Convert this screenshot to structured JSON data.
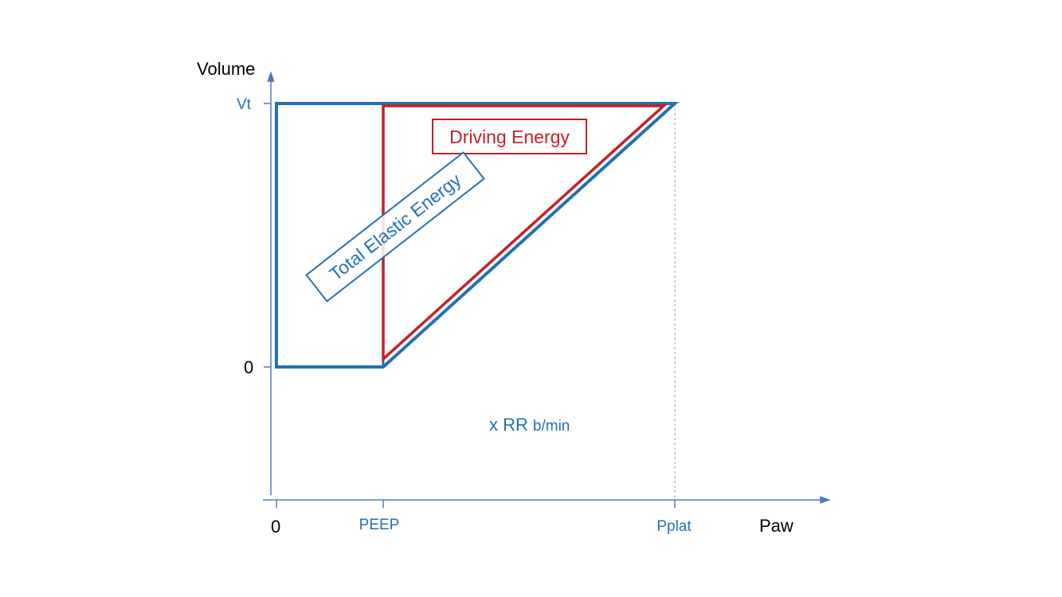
{
  "colors": {
    "axis": "#4a7dc0",
    "blue": "#2272b4",
    "red": "#c42126",
    "dashed": "#9a9a9a",
    "black": "#000000"
  },
  "axes": {
    "y_title": "Volume",
    "x_title": "Paw",
    "y_ticks": {
      "vt": "Vt",
      "zero": "0"
    },
    "x_ticks": {
      "zero": "0",
      "peep": "PEEP",
      "pplat": "Pplat"
    }
  },
  "labels": {
    "driving_energy": "Driving Energy",
    "total_elastic_energy": "Total Elastic Energy",
    "rate_prefix": "x RR",
    "rate_unit": "b/min"
  }
}
